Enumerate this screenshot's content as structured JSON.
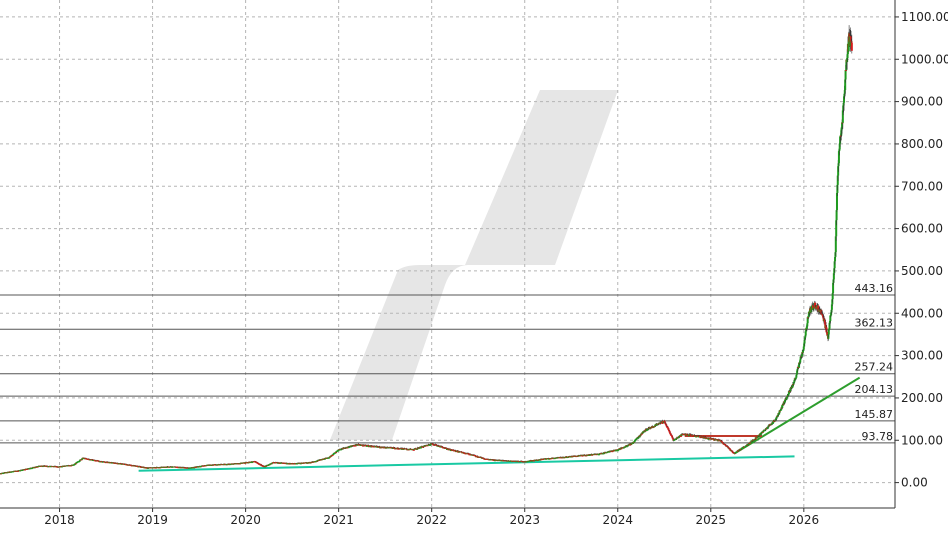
{
  "chart_data": {
    "type": "candlestick",
    "title": "",
    "xlabel": "",
    "ylabel": "",
    "ylim": [
      -60,
      1140
    ],
    "xlim": [
      2017.36,
      2026.98
    ],
    "grid": true,
    "y_axis_side": "right",
    "y_ticks": [
      "0.00",
      "100.00",
      "200.00",
      "300.00",
      "400.00",
      "500.00",
      "600.00",
      "700.00",
      "800.00",
      "900.00",
      "1000.00",
      "1100.00"
    ],
    "x_ticks": [
      "2018",
      "2019",
      "2020",
      "2021",
      "2022",
      "2023",
      "2024",
      "2025",
      "2026"
    ],
    "horizontal_levels": [
      {
        "value": 443.16,
        "label": "443.16"
      },
      {
        "value": 362.13,
        "label": "362.13"
      },
      {
        "value": 257.24,
        "label": "257.24"
      },
      {
        "value": 204.13,
        "label": "204.13"
      },
      {
        "value": 145.87,
        "label": "145.87"
      },
      {
        "value": 93.78,
        "label": "93.78"
      }
    ],
    "trendlines": [
      {
        "name": "",
        "color": "#19c9a3",
        "points": [
          [
            2018.85,
            28
          ],
          [
            2025.9,
            62
          ]
        ]
      },
      {
        "name": "",
        "color": "#2e9e2e",
        "points": [
          [
            2025.25,
            68
          ],
          [
            2026.6,
            248
          ]
        ]
      },
      {
        "name": "",
        "color": "#c0392b",
        "points": [
          [
            2024.72,
            110
          ],
          [
            2025.55,
            110
          ]
        ]
      }
    ],
    "price_path": [
      [
        2017.36,
        22
      ],
      [
        2017.6,
        30
      ],
      [
        2017.8,
        40
      ],
      [
        2018.0,
        38
      ],
      [
        2018.15,
        42
      ],
      [
        2018.25,
        58
      ],
      [
        2018.45,
        50
      ],
      [
        2018.7,
        44
      ],
      [
        2018.95,
        35
      ],
      [
        2019.2,
        38
      ],
      [
        2019.4,
        35
      ],
      [
        2019.6,
        42
      ],
      [
        2019.9,
        45
      ],
      [
        2020.1,
        50
      ],
      [
        2020.2,
        38
      ],
      [
        2020.3,
        48
      ],
      [
        2020.5,
        45
      ],
      [
        2020.7,
        48
      ],
      [
        2020.9,
        60
      ],
      [
        2021.0,
        78
      ],
      [
        2021.2,
        90
      ],
      [
        2021.4,
        85
      ],
      [
        2021.6,
        82
      ],
      [
        2021.8,
        78
      ],
      [
        2022.0,
        92
      ],
      [
        2022.2,
        78
      ],
      [
        2022.4,
        68
      ],
      [
        2022.6,
        55
      ],
      [
        2022.8,
        52
      ],
      [
        2023.0,
        50
      ],
      [
        2023.2,
        56
      ],
      [
        2023.5,
        62
      ],
      [
        2023.8,
        68
      ],
      [
        2024.0,
        78
      ],
      [
        2024.15,
        92
      ],
      [
        2024.3,
        125
      ],
      [
        2024.5,
        145
      ],
      [
        2024.6,
        100
      ],
      [
        2024.7,
        115
      ],
      [
        2024.9,
        108
      ],
      [
        2025.1,
        100
      ],
      [
        2025.25,
        70
      ],
      [
        2025.4,
        90
      ],
      [
        2025.55,
        118
      ],
      [
        2025.7,
        150
      ],
      [
        2025.8,
        195
      ],
      [
        2025.9,
        240
      ],
      [
        2026.0,
        320
      ],
      [
        2026.05,
        400
      ],
      [
        2026.12,
        420
      ],
      [
        2026.2,
        400
      ],
      [
        2026.26,
        340
      ],
      [
        2026.3,
        420
      ],
      [
        2026.34,
        550
      ],
      [
        2026.36,
        700
      ],
      [
        2026.38,
        790
      ],
      [
        2026.4,
        820
      ],
      [
        2026.43,
        900
      ],
      [
        2026.46,
        1000
      ],
      [
        2026.49,
        1050
      ],
      [
        2026.52,
        1030
      ]
    ]
  }
}
